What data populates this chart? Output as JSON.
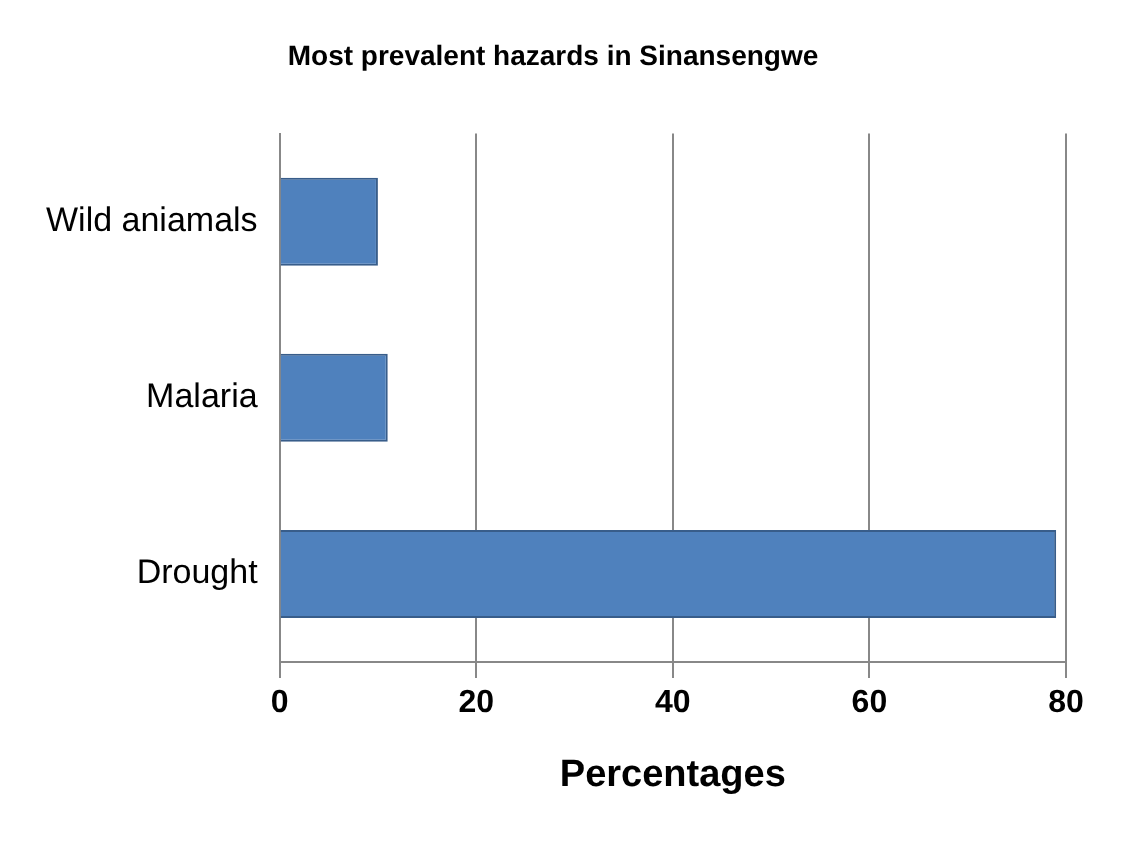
{
  "chart_data": {
    "type": "bar",
    "orientation": "horizontal",
    "title": "Most prevalent hazards in Sinansengwe",
    "xlabel": "Percentages",
    "categories": [
      "Wild aniamals",
      "Malaria",
      "Drought"
    ],
    "values": [
      10,
      11,
      79
    ],
    "color": "#4f81bd",
    "xlim": [
      0,
      80
    ],
    "xticks": [
      0,
      20,
      40,
      60,
      80
    ],
    "grid": "x",
    "legend": false
  }
}
